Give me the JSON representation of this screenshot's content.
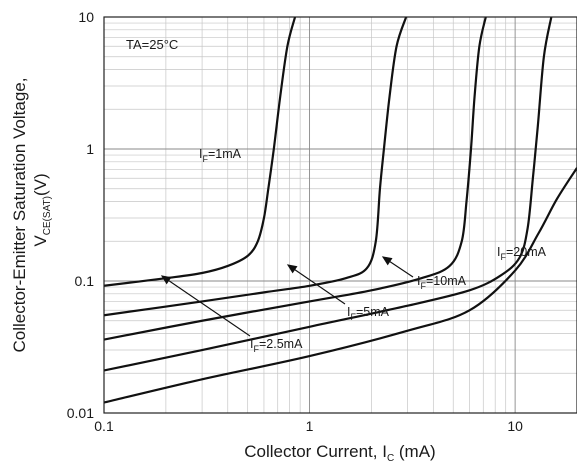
{
  "chart_data": {
    "type": "line",
    "x_scale": "log",
    "y_scale": "log",
    "xlim": [
      0.1,
      20
    ],
    "ylim": [
      0.01,
      10
    ],
    "grid": true,
    "x_ticks": [
      "0.1",
      "1",
      "10"
    ],
    "y_ticks": [
      "0.01",
      "0.1",
      "1",
      "10"
    ],
    "xlabel_main": "Collector Current, I",
    "xlabel_sub": "C",
    "xlabel_tail": " (mA)",
    "ylabel_line1": "Collector-Emitter Saturation Voltage,",
    "ylabel_main": "V",
    "ylabel_sub": "CE(SAT)",
    "ylabel_tail": "(V)",
    "condition": "TA=25°C",
    "series": [
      {
        "name": "IF=1mA",
        "x": [
          0.1,
          0.2,
          0.3,
          0.4,
          0.5,
          0.56,
          0.6,
          0.63,
          0.67,
          0.72,
          0.78,
          0.85
        ],
        "y": [
          0.092,
          0.105,
          0.115,
          0.13,
          0.155,
          0.2,
          0.3,
          0.5,
          1.0,
          2.5,
          6.0,
          10
        ]
      },
      {
        "name": "IF=2.5mA",
        "x": [
          0.1,
          0.3,
          0.6,
          1.0,
          1.5,
          1.9,
          2.1,
          2.2,
          2.3,
          2.45,
          2.65,
          2.95
        ],
        "y": [
          0.055,
          0.07,
          0.082,
          0.092,
          0.105,
          0.125,
          0.2,
          0.5,
          1.0,
          2.5,
          6.0,
          10
        ]
      },
      {
        "name": "IF=5mA",
        "x": [
          0.1,
          0.3,
          1.0,
          2.0,
          3.5,
          4.8,
          5.5,
          5.8,
          6.1,
          6.35,
          6.7,
          7.2
        ],
        "y": [
          0.036,
          0.05,
          0.07,
          0.085,
          0.105,
          0.13,
          0.2,
          0.4,
          1.0,
          2.5,
          6.0,
          10
        ]
      },
      {
        "name": "IF=10mA",
        "x": [
          0.1,
          0.3,
          1.0,
          3.0,
          6.0,
          8.5,
          10.5,
          11.5,
          12.2,
          12.9,
          13.8,
          15.0
        ],
        "y": [
          0.021,
          0.03,
          0.045,
          0.065,
          0.085,
          0.11,
          0.15,
          0.25,
          0.6,
          1.5,
          5.0,
          10
        ]
      },
      {
        "name": "IF=20mA",
        "x": [
          0.1,
          0.3,
          1.0,
          3.0,
          6.0,
          10.0,
          13.0,
          16.0,
          20.0
        ],
        "y": [
          0.012,
          0.018,
          0.027,
          0.042,
          0.06,
          0.12,
          0.23,
          0.42,
          0.72
        ]
      }
    ],
    "annotations": [
      {
        "main": "I",
        "sub": "F",
        "tail": "=1mA"
      },
      {
        "main": "I",
        "sub": "F",
        "tail": "=2.5mA"
      },
      {
        "main": "I",
        "sub": "F",
        "tail": "=5mA"
      },
      {
        "main": "I",
        "sub": "F",
        "tail": "=10mA"
      },
      {
        "main": "I",
        "sub": "F",
        "tail": "=20mA"
      }
    ]
  }
}
